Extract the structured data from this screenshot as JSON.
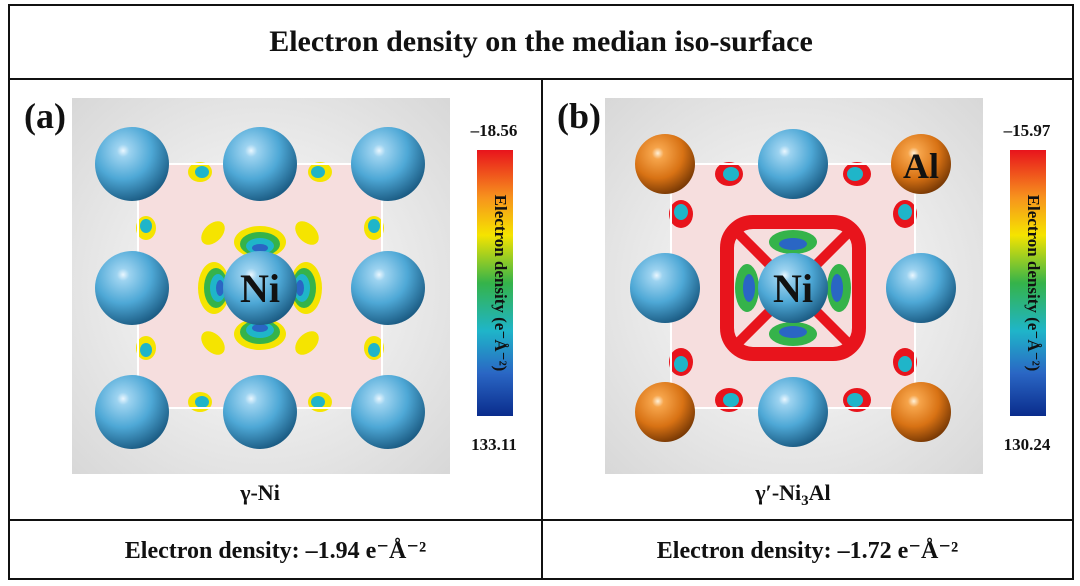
{
  "title": "Electron density on the median iso-surface",
  "panels": [
    {
      "tag": "(a)",
      "center_label": "Ni",
      "corner_label": "",
      "caption": "γ-Ni",
      "colorbar": {
        "label": "Electron density (e⁻Å⁻²)",
        "max": "–18.56",
        "min": "133.11"
      },
      "footer": "Electron density: –1.94 e⁻Å⁻²",
      "corner_atom_color": "#3e9ac8"
    },
    {
      "tag": "(b)",
      "center_label": "Ni",
      "corner_label": "Al",
      "caption_prefix": "γ′-Ni",
      "caption_sub": "3",
      "caption_suffix": "Al",
      "colorbar": {
        "label": "Electron density (e⁻Å⁻²)",
        "max": "–15.97",
        "min": "130.24"
      },
      "footer": "Electron density: –1.72 e⁻Å⁻²",
      "corner_atom_color": "#e07b18"
    }
  ],
  "colors": {
    "ni_atom": "#4ea8d6",
    "al_atom": "#e07b18",
    "slice_bg": "#f6dede"
  }
}
